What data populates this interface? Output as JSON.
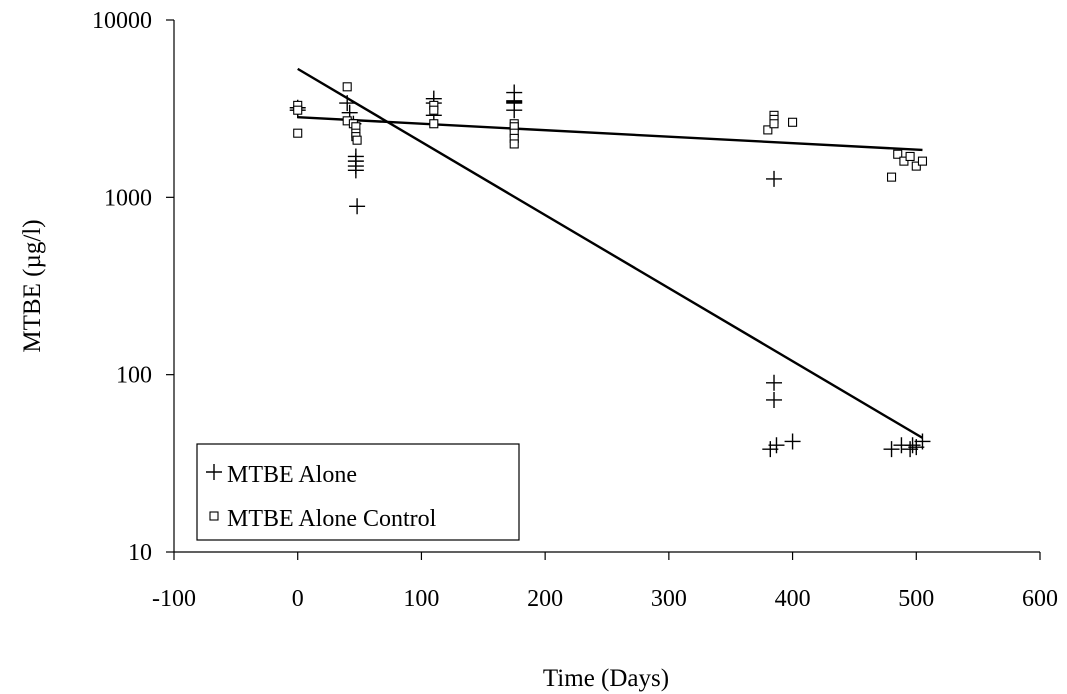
{
  "chart_data": {
    "type": "scatter",
    "xlabel": "Time (Days)",
    "ylabel": "MTBE (µg/l)",
    "xlim": [
      -100,
      600
    ],
    "ylim": [
      10,
      10000
    ],
    "yscale": "log",
    "x_ticks": [
      -100,
      0,
      100,
      200,
      300,
      400,
      500,
      600
    ],
    "y_ticks": [
      10,
      100,
      1000,
      10000
    ],
    "grid": false,
    "legend_position": "bottom-left",
    "series": [
      {
        "name": "MTBE Alone",
        "marker": "plus",
        "points": [
          [
            0,
            3100
          ],
          [
            0,
            3200
          ],
          [
            40,
            3400
          ],
          [
            42,
            3000
          ],
          [
            45,
            2600
          ],
          [
            47,
            1700
          ],
          [
            47,
            1600
          ],
          [
            47,
            1500
          ],
          [
            47,
            1420
          ],
          [
            48,
            890
          ],
          [
            110,
            3600
          ],
          [
            110,
            3400
          ],
          [
            110,
            2900
          ],
          [
            175,
            3900
          ],
          [
            175,
            3500
          ],
          [
            175,
            3450
          ],
          [
            175,
            3400
          ],
          [
            175,
            3100
          ],
          [
            385,
            1270
          ],
          [
            385,
            90
          ],
          [
            385,
            72
          ],
          [
            382,
            38
          ],
          [
            387,
            40
          ],
          [
            400,
            42
          ],
          [
            480,
            38
          ],
          [
            488,
            40
          ],
          [
            495,
            38
          ],
          [
            497,
            40
          ],
          [
            500,
            39
          ],
          [
            505,
            42
          ]
        ]
      },
      {
        "name": "MTBE Alone Control",
        "marker": "square",
        "points": [
          [
            0,
            3300
          ],
          [
            0,
            3100
          ],
          [
            0,
            2300
          ],
          [
            40,
            4200
          ],
          [
            40,
            2700
          ],
          [
            45,
            2600
          ],
          [
            47,
            2500
          ],
          [
            47,
            2300
          ],
          [
            47,
            2200
          ],
          [
            48,
            2100
          ],
          [
            110,
            3300
          ],
          [
            110,
            3100
          ],
          [
            110,
            2600
          ],
          [
            175,
            2600
          ],
          [
            175,
            2500
          ],
          [
            175,
            2300
          ],
          [
            175,
            2150
          ],
          [
            175,
            2000
          ],
          [
            380,
            2400
          ],
          [
            385,
            2900
          ],
          [
            385,
            2750
          ],
          [
            385,
            2600
          ],
          [
            400,
            2650
          ],
          [
            480,
            1300
          ],
          [
            485,
            1750
          ],
          [
            490,
            1600
          ],
          [
            495,
            1700
          ],
          [
            500,
            1500
          ],
          [
            505,
            1600
          ]
        ]
      }
    ],
    "trendlines": [
      {
        "series": "MTBE Alone",
        "x": [
          0,
          505
        ],
        "y": [
          5300,
          44
        ]
      },
      {
        "series": "MTBE Alone Control",
        "x": [
          0,
          505
        ],
        "y": [
          2830,
          1850
        ]
      }
    ]
  }
}
